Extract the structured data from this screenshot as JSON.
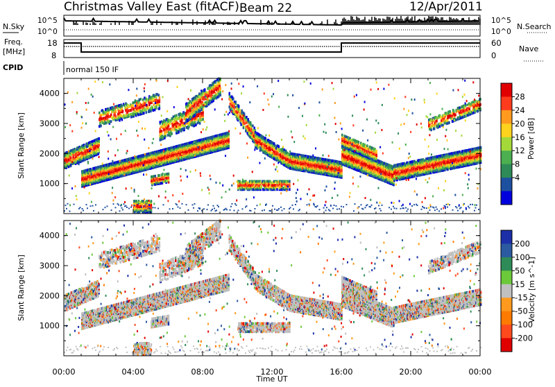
{
  "header": {
    "title": "Christmas Valley East (fitACF)",
    "beam": "Beam 22",
    "date": "12/Apr/2011"
  },
  "top_panels": {
    "nsky_label": "N.Sky",
    "nsearch_label": "N.Search",
    "count_ticks": [
      "10^5",
      "10^0"
    ],
    "freq_label_line1": "Freq.",
    "freq_label_line2": "[MHz]",
    "freq_ticks": [
      "18",
      "8"
    ],
    "nave_label": "Nave",
    "nave_ticks": [
      "60",
      "0"
    ],
    "cpid_label": "CPID",
    "cpid_value": "normal 150 IF"
  },
  "chart_data": [
    {
      "type": "heatmap",
      "title": "",
      "ylabel": "Slant Range [km]",
      "ylim": [
        0,
        4500
      ],
      "yticks": [
        "1000",
        "2000",
        "3000",
        "4000"
      ],
      "xlabel": "",
      "x_ticks": [
        "00:00",
        "04:00",
        "08:00",
        "12:00",
        "16:00",
        "20:00",
        "00:00"
      ],
      "colorbar": {
        "label": "Power [dB]",
        "ticks": [
          "4",
          "8",
          "12",
          "16",
          "20",
          "24",
          "28"
        ],
        "colors": [
          "#0000dd",
          "#1e50a0",
          "#2e8b57",
          "#4caf50",
          "#a4d93a",
          "#ffd21e",
          "#ff9a1e",
          "#ff3b1e",
          "#e00000"
        ]
      }
    },
    {
      "type": "heatmap",
      "title": "",
      "ylabel": "Slant Range [km]",
      "ylim": [
        0,
        4500
      ],
      "yticks": [
        "1000",
        "2000",
        "3000",
        "4000"
      ],
      "xlabel": "Time UT",
      "x_ticks": [
        "00:00",
        "04:00",
        "08:00",
        "12:00",
        "16:00",
        "20:00",
        "00:00"
      ],
      "colorbar": {
        "label": "Velocity [m s^-1]",
        "ticks": [
          "200",
          "100",
          "50",
          "15",
          "-15",
          "-50",
          "-100",
          "-200"
        ],
        "colors": [
          "#1c2fa8",
          "#2b5aa0",
          "#2e8b57",
          "#6cc93a",
          "#c0c0c0",
          "#ff9a1e",
          "#ff7a00",
          "#ff4a1e",
          "#e00000"
        ]
      }
    }
  ]
}
